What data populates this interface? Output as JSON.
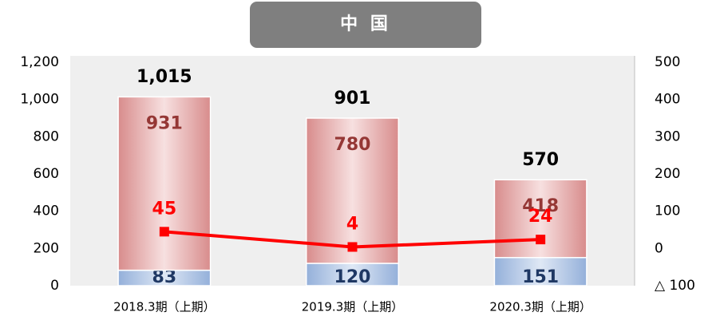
{
  "chart_data": {
    "type": "bar",
    "title": "中 国",
    "categories": [
      "2018.3期（上期）",
      "2019.3期（上期）",
      "2020.3期（上期）"
    ],
    "series": [
      {
        "name": "blue",
        "color": "#9bb5dc",
        "values": [
          83,
          120,
          151
        ]
      },
      {
        "name": "red",
        "color": "#d88c8c",
        "values": [
          931,
          780,
          418
        ]
      },
      {
        "name": "line",
        "type": "line",
        "axis": "y2",
        "color": "#ff0000",
        "values": [
          45,
          4,
          24
        ]
      }
    ],
    "totals": {
      "values": [
        1015,
        901,
        570
      ],
      "value_labels": [
        "1,015",
        "901",
        "570"
      ]
    },
    "ylim": [
      0,
      1200
    ],
    "yticks": [
      0,
      200,
      400,
      600,
      800,
      {
        "value": 1000,
        "label": "1,000"
      },
      {
        "value": 1200,
        "label": "1,200"
      }
    ],
    "y2lim": [
      -100,
      500
    ],
    "y2ticks": [
      {
        "value": -100,
        "label": "△ 100"
      },
      0,
      100,
      200,
      300,
      400,
      500
    ]
  }
}
